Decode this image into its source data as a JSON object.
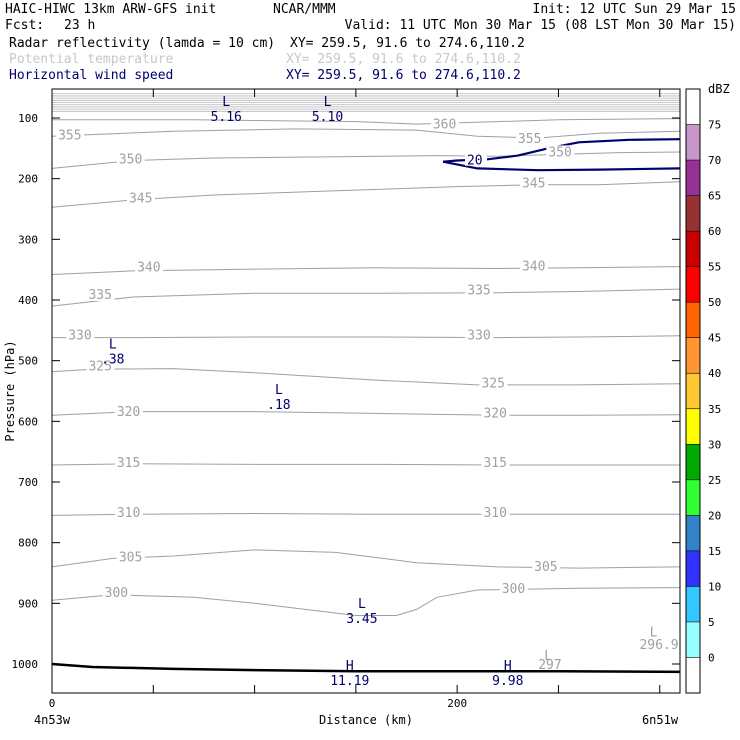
{
  "header": {
    "model": "HAIC-HIWC 13km ARW-GFS init",
    "org": "NCAR/MMM",
    "init": "Init: 12 UTC Sun 29 Mar 15",
    "fcst_label": "Fcst:",
    "fcst_value": "23 h",
    "valid": "Valid: 11 UTC Mon 30 Mar 15 (08 LST Mon 30 Mar 15)",
    "fields": [
      {
        "name": "Radar reflectivity (lamda = 10 cm)",
        "xy": "XY= 259.5, 91.6 to 274.6,110.2",
        "color": "#000000"
      },
      {
        "name": "Potential temperature",
        "xy": "XY= 259.5, 91.6 to 274.6,110.2",
        "color": "#c8c8c8"
      },
      {
        "name": "Horizontal wind speed",
        "xy": "XY= 259.5, 91.6 to 274.6,110.2",
        "color": "#00006e"
      }
    ]
  },
  "colors": {
    "theta_contour": "#a0a0a0",
    "wind_contour": "#00006e",
    "terrain": "#000000",
    "top_hatch": "#b4b4b4"
  },
  "chart_data": {
    "type": "line",
    "ylabel": "Pressure (hPa)",
    "xlabel": "Distance (km)",
    "x_left_label": "4n53w",
    "x_right_label": "6n51w",
    "xlim": [
      0,
      310
    ],
    "ylim_pressure": [
      1045,
      60
    ],
    "x_ticks": [
      0,
      200
    ],
    "y_ticks": [
      100,
      200,
      300,
      400,
      500,
      600,
      700,
      800,
      900,
      1000
    ],
    "theta_contours": [
      {
        "value": 360,
        "label": "360",
        "points": [
          [
            0,
            103
          ],
          [
            70,
            103
          ],
          [
            150,
            106
          ],
          [
            180,
            110
          ],
          [
            250,
            103
          ],
          [
            310,
            101
          ]
        ],
        "labels_at": [
          [
            188,
            114
          ]
        ]
      },
      {
        "value": 355,
        "label": "355",
        "points": [
          [
            0,
            130
          ],
          [
            60,
            122
          ],
          [
            120,
            118
          ],
          [
            180,
            120
          ],
          [
            210,
            130
          ],
          [
            240,
            133
          ],
          [
            270,
            125
          ],
          [
            310,
            122
          ]
        ],
        "labels_at": [
          [
            3,
            132
          ],
          [
            230,
            138
          ]
        ]
      },
      {
        "value": 350,
        "label": "350",
        "points": [
          [
            0,
            183
          ],
          [
            40,
            170
          ],
          [
            80,
            166
          ],
          [
            140,
            164
          ],
          [
            190,
            162
          ],
          [
            220,
            163
          ],
          [
            250,
            160
          ],
          [
            280,
            157
          ],
          [
            310,
            156
          ]
        ],
        "labels_at": [
          [
            33,
            172
          ],
          [
            245,
            160
          ]
        ]
      },
      {
        "value": 345,
        "label": "345",
        "points": [
          [
            0,
            247
          ],
          [
            40,
            235
          ],
          [
            80,
            227
          ],
          [
            140,
            220
          ],
          [
            200,
            213
          ],
          [
            240,
            210
          ],
          [
            270,
            210
          ],
          [
            310,
            205
          ]
        ],
        "labels_at": [
          [
            38,
            236
          ],
          [
            232,
            211
          ]
        ]
      },
      {
        "value": 340,
        "label": "340",
        "points": [
          [
            0,
            358
          ],
          [
            40,
            352
          ],
          [
            100,
            349
          ],
          [
            160,
            347
          ],
          [
            220,
            348
          ],
          [
            260,
            347
          ],
          [
            310,
            345
          ]
        ],
        "labels_at": [
          [
            42,
            350
          ],
          [
            232,
            348
          ]
        ]
      },
      {
        "value": 335,
        "label": "335",
        "points": [
          [
            0,
            410
          ],
          [
            40,
            395
          ],
          [
            100,
            389
          ],
          [
            160,
            389
          ],
          [
            220,
            388
          ],
          [
            260,
            386
          ],
          [
            310,
            382
          ]
        ],
        "labels_at": [
          [
            18,
            395
          ],
          [
            205,
            388
          ]
        ]
      },
      {
        "value": 330,
        "label": "330",
        "points": [
          [
            0,
            462
          ],
          [
            40,
            462
          ],
          [
            100,
            461
          ],
          [
            160,
            461
          ],
          [
            220,
            462
          ],
          [
            260,
            461
          ],
          [
            310,
            459
          ]
        ],
        "labels_at": [
          [
            8,
            462
          ],
          [
            205,
            462
          ]
        ]
      },
      {
        "value": 325,
        "label": "325",
        "points": [
          [
            0,
            518
          ],
          [
            20,
            514
          ],
          [
            60,
            513
          ],
          [
            100,
            520
          ],
          [
            160,
            532
          ],
          [
            210,
            540
          ],
          [
            260,
            540
          ],
          [
            310,
            538
          ]
        ],
        "labels_at": [
          [
            18,
            513
          ],
          [
            212,
            541
          ]
        ]
      },
      {
        "value": 320,
        "label": "320",
        "points": [
          [
            0,
            590
          ],
          [
            40,
            584
          ],
          [
            100,
            584
          ],
          [
            160,
            587
          ],
          [
            220,
            590
          ],
          [
            260,
            590
          ],
          [
            310,
            589
          ]
        ],
        "labels_at": [
          [
            32,
            588
          ],
          [
            213,
            590
          ]
        ]
      },
      {
        "value": 315,
        "label": "315",
        "points": [
          [
            0,
            672
          ],
          [
            40,
            670
          ],
          [
            100,
            671
          ],
          [
            160,
            671
          ],
          [
            220,
            672
          ],
          [
            260,
            672
          ],
          [
            310,
            672
          ]
        ],
        "labels_at": [
          [
            32,
            672
          ],
          [
            213,
            672
          ]
        ]
      },
      {
        "value": 310,
        "label": "310",
        "points": [
          [
            0,
            755
          ],
          [
            40,
            753
          ],
          [
            100,
            752
          ],
          [
            160,
            753
          ],
          [
            220,
            753
          ],
          [
            260,
            753
          ],
          [
            310,
            753
          ]
        ],
        "labels_at": [
          [
            32,
            754
          ],
          [
            213,
            754
          ]
        ]
      },
      {
        "value": 305,
        "label": "305",
        "points": [
          [
            0,
            840
          ],
          [
            30,
            826
          ],
          [
            60,
            822
          ],
          [
            100,
            812
          ],
          [
            140,
            816
          ],
          [
            180,
            833
          ],
          [
            220,
            840
          ],
          [
            260,
            842
          ],
          [
            310,
            840
          ]
        ],
        "labels_at": [
          [
            33,
            828
          ],
          [
            238,
            843
          ]
        ]
      },
      {
        "value": 300,
        "label": "300",
        "points": [
          [
            0,
            895
          ],
          [
            30,
            886
          ],
          [
            70,
            890
          ],
          [
            100,
            900
          ],
          [
            150,
            920
          ],
          [
            170,
            920
          ],
          [
            180,
            910
          ],
          [
            190,
            890
          ],
          [
            210,
            878
          ],
          [
            260,
            875
          ],
          [
            310,
            874
          ]
        ],
        "labels_at": [
          [
            26,
            886
          ],
          [
            222,
            880
          ]
        ]
      }
    ],
    "theta_extra_labels": [
      {
        "label": "L",
        "at": [
          295,
          955
        ]
      },
      {
        "label": "296.9",
        "at": [
          290,
          975
        ]
      },
      {
        "label": "L",
        "at": [
          243,
          993
        ]
      },
      {
        "label": "297",
        "at": [
          240,
          1008
        ]
      }
    ],
    "wind_contours": [
      {
        "value": 20,
        "label": "20",
        "points": [
          [
            193,
            172
          ],
          [
            200,
            170
          ],
          [
            215,
            168
          ],
          [
            230,
            162
          ],
          [
            245,
            150
          ],
          [
            260,
            140
          ],
          [
            285,
            136
          ],
          [
            310,
            135
          ]
        ]
      },
      {
        "value": 20,
        "label": "",
        "points": [
          [
            193,
            172
          ],
          [
            210,
            183
          ],
          [
            240,
            186
          ],
          [
            270,
            185
          ],
          [
            310,
            183
          ]
        ]
      }
    ],
    "wind_extremes": [
      {
        "type": "L",
        "value": "5.16",
        "at": [
          86,
          80
        ]
      },
      {
        "type": "L",
        "value": "5.10",
        "at": [
          136,
          80
        ]
      },
      {
        "type": "L",
        "value": ".38",
        "at": [
          30,
          480
        ]
      },
      {
        "type": "L",
        "value": ".18",
        "at": [
          112,
          555
        ]
      },
      {
        "type": "L",
        "value": "3.45",
        "at": [
          153,
          908
        ]
      },
      {
        "type": "H",
        "value": "11.19",
        "at": [
          147,
          1010
        ]
      },
      {
        "type": "H",
        "value": "9.98",
        "at": [
          225,
          1010
        ]
      }
    ],
    "terrain": [
      [
        0,
        1000
      ],
      [
        20,
        1005
      ],
      [
        60,
        1008
      ],
      [
        100,
        1010
      ],
      [
        150,
        1012
      ],
      [
        200,
        1012
      ],
      [
        250,
        1012
      ],
      [
        310,
        1013
      ]
    ],
    "top_hatch_pressure": [
      60,
      90
    ],
    "colorbar": {
      "unit": "dBZ",
      "levels": [
        "0",
        "5",
        "10",
        "15",
        "20",
        "25",
        "30",
        "35",
        "40",
        "45",
        "50",
        "55",
        "60",
        "65",
        "70",
        "75"
      ],
      "colors": [
        "#ffffff",
        "#96ffff",
        "#32c8ff",
        "#3232ff",
        "#3282c8",
        "#32ff32",
        "#00aa00",
        "#ffff00",
        "#ffc832",
        "#ff9632",
        "#ff6400",
        "#ff0000",
        "#c80000",
        "#963232",
        "#963296",
        "#c896c8",
        "#ffffff"
      ]
    }
  }
}
